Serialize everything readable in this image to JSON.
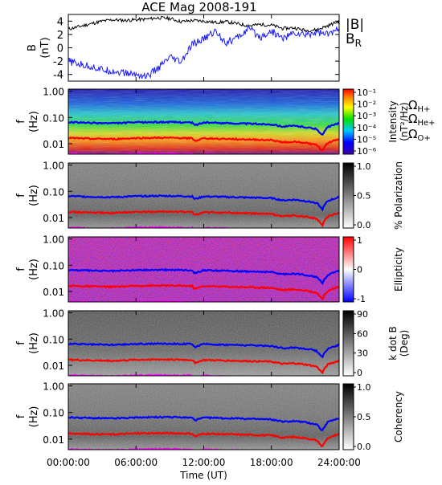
{
  "title": "ACE Mag 2008-191",
  "xlabel": "Time (UT)",
  "x_ticks": [
    "00:00:00",
    "06:00:00",
    "12:00:00",
    "18:00:00",
    "24:00:00"
  ],
  "freq_ticks": [
    "1.00",
    "0.10",
    "0.01"
  ],
  "f_label": "f",
  "f_unit": "(Hz)",
  "legends": {
    "B": "|B|",
    "BR": "BR",
    "H": "ΩH+",
    "He": "ΩHe+",
    "O": "ΩO+"
  },
  "colors": {
    "B": "#000000",
    "BR": "#1a1aff",
    "H": "#0000ff",
    "He": "#ff0000",
    "O": "#ff00ff"
  },
  "panels": [
    {
      "id": "bfield",
      "type": "line",
      "ylabel": "B",
      "yunit": "(nT)"
    },
    {
      "id": "intensity",
      "type": "heatmap",
      "cbar_label": "Intensity",
      "cbar_unit": "(nT²/Hz)",
      "cbar_ticks": [
        "10⁻¹",
        "10⁻²",
        "10⁻³",
        "10⁻⁴",
        "10⁻⁵",
        "10⁻⁶"
      ]
    },
    {
      "id": "polarization",
      "type": "heatmap",
      "cbar_label": "% Polarization",
      "cbar_ticks": [
        "1.0",
        "0.5",
        "0.0"
      ]
    },
    {
      "id": "ellipticity",
      "type": "heatmap",
      "cbar_label": "Ellipticity",
      "cbar_ticks": [
        "1",
        "0",
        "-1"
      ]
    },
    {
      "id": "kdotb",
      "type": "heatmap",
      "cbar_label": "k dot B",
      "cbar_unit": "(Deg)",
      "cbar_ticks": [
        "90",
        "60",
        "30",
        "0"
      ]
    },
    {
      "id": "coherency",
      "type": "heatmap",
      "cbar_label": "Coherency",
      "cbar_ticks": [
        "1.0",
        "0.5",
        "0.0"
      ]
    }
  ],
  "chart_data": {
    "type": "line",
    "x_unit": "hours UT",
    "xlim": [
      0,
      24
    ],
    "b_panel": {
      "ylim": [
        -5,
        5
      ],
      "yticks": [
        4,
        2,
        0,
        -2,
        -4
      ],
      "series": [
        {
          "name": "|B|",
          "x": [
            0,
            1,
            2,
            3,
            4,
            5,
            6,
            7,
            8,
            9,
            10,
            11,
            12,
            13,
            14,
            15,
            16,
            17,
            18,
            19,
            20,
            21,
            22,
            23,
            24
          ],
          "y": [
            2.8,
            3.2,
            3.6,
            4.0,
            4.2,
            4.1,
            4.2,
            4.3,
            4.5,
            4.4,
            3.9,
            4.1,
            4.0,
            3.8,
            3.9,
            3.6,
            3.3,
            3.5,
            3.4,
            2.9,
            3.0,
            2.6,
            2.7,
            3.3,
            4.0
          ]
        },
        {
          "name": "BR",
          "x": [
            0,
            1,
            2,
            3,
            4,
            5,
            6,
            7,
            8,
            9,
            10,
            11,
            12,
            13,
            14,
            15,
            16,
            17,
            18,
            19,
            20,
            21,
            22,
            23,
            24
          ],
          "y": [
            -2.0,
            -2.5,
            -2.8,
            -3.3,
            -3.5,
            -3.8,
            -4.0,
            -4.3,
            -3.0,
            -1.5,
            -2.2,
            0.5,
            1.3,
            2.5,
            0.8,
            1.5,
            2.9,
            1.6,
            2.5,
            1.4,
            2.2,
            1.9,
            2.4,
            2.0,
            2.8
          ]
        }
      ]
    },
    "freq_axis": {
      "scale": "log",
      "ylim": [
        0.004,
        1.2
      ],
      "ticks": [
        1.0,
        0.1,
        0.01
      ]
    },
    "gyrofrequencies": {
      "x": [
        0,
        2,
        4,
        6,
        8,
        10,
        11,
        11.2,
        12,
        14,
        16,
        18,
        19,
        20,
        21,
        22,
        22.5,
        23,
        24
      ],
      "H+": [
        0.066,
        0.062,
        0.06,
        0.065,
        0.067,
        0.066,
        0.064,
        0.05,
        0.064,
        0.061,
        0.058,
        0.055,
        0.045,
        0.048,
        0.043,
        0.036,
        0.02,
        0.043,
        0.06
      ],
      "He+": [
        0.0165,
        0.0155,
        0.015,
        0.0163,
        0.0168,
        0.0165,
        0.016,
        0.0125,
        0.016,
        0.0153,
        0.0145,
        0.0138,
        0.0113,
        0.012,
        0.0108,
        0.009,
        0.005,
        0.0108,
        0.015
      ],
      "O+": [
        0.0041,
        0.0039,
        0.0038,
        0.0041,
        0.0042,
        0.0041,
        0.004,
        0.0031,
        0.004,
        0.0038,
        0.0036,
        0.0034,
        0.0028,
        0.003,
        0.0027,
        0.0023,
        0.0013,
        0.0027,
        0.0038
      ]
    }
  }
}
